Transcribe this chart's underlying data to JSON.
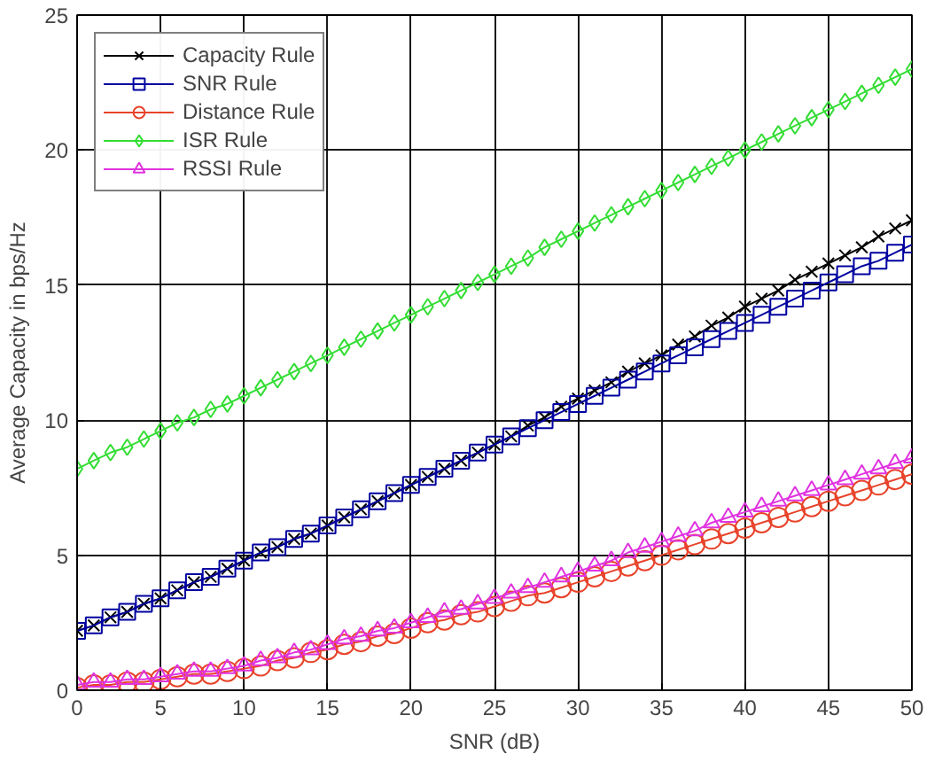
{
  "chart_data": {
    "type": "line",
    "xlabel": "SNR (dB)",
    "ylabel": "Average Capacity in bps/Hz",
    "x": [
      0,
      1,
      2,
      3,
      4,
      5,
      6,
      7,
      8,
      9,
      10,
      11,
      12,
      13,
      14,
      15,
      16,
      17,
      18,
      19,
      20,
      21,
      22,
      23,
      24,
      25,
      26,
      27,
      28,
      29,
      30,
      31,
      32,
      33,
      34,
      35,
      36,
      37,
      38,
      39,
      40,
      41,
      42,
      43,
      44,
      45,
      46,
      47,
      48,
      49,
      50
    ],
    "xlim": [
      0,
      50
    ],
    "xticks": [
      0,
      5,
      10,
      15,
      20,
      25,
      30,
      35,
      40,
      45,
      50
    ],
    "ylim": [
      0,
      25
    ],
    "yticks": [
      0,
      5,
      10,
      15,
      20,
      25
    ],
    "grid": true,
    "legend": "top left",
    "line_style": "solid",
    "series": [
      {
        "name": "Capacity Rule",
        "color": "#000000",
        "marker": "cross",
        "values": [
          2.2,
          2.4,
          2.7,
          2.9,
          3.2,
          3.4,
          3.7,
          4.0,
          4.2,
          4.5,
          4.8,
          5.1,
          5.3,
          5.6,
          5.8,
          6.1,
          6.4,
          6.7,
          7.0,
          7.3,
          7.6,
          7.9,
          8.2,
          8.5,
          8.8,
          9.1,
          9.4,
          9.8,
          10.1,
          10.5,
          10.8,
          11.1,
          11.4,
          11.8,
          12.1,
          12.4,
          12.8,
          13.1,
          13.5,
          13.8,
          14.2,
          14.5,
          14.8,
          15.2,
          15.5,
          15.8,
          16.1,
          16.4,
          16.8,
          17.1,
          17.4
        ]
      },
      {
        "name": "SNR Rule",
        "color": "#0000a0",
        "marker": "square",
        "values": [
          2.2,
          2.4,
          2.7,
          2.9,
          3.2,
          3.4,
          3.7,
          4.0,
          4.2,
          4.5,
          4.8,
          5.1,
          5.3,
          5.6,
          5.8,
          6.1,
          6.4,
          6.7,
          7.0,
          7.3,
          7.6,
          7.9,
          8.2,
          8.5,
          8.8,
          9.1,
          9.4,
          9.7,
          10.0,
          10.3,
          10.6,
          10.9,
          11.2,
          11.5,
          11.8,
          12.1,
          12.4,
          12.7,
          13.0,
          13.3,
          13.6,
          13.9,
          14.2,
          14.5,
          14.8,
          15.1,
          15.4,
          15.7,
          15.9,
          16.2,
          16.5
        ]
      },
      {
        "name": "Distance Rule",
        "color": "#e8432a",
        "marker": "circle",
        "values": [
          0.1,
          0.2,
          0.2,
          0.3,
          0.3,
          0.4,
          0.5,
          0.6,
          0.6,
          0.7,
          0.8,
          0.9,
          1.1,
          1.2,
          1.4,
          1.5,
          1.7,
          1.8,
          2.0,
          2.1,
          2.3,
          2.5,
          2.6,
          2.8,
          2.9,
          3.1,
          3.3,
          3.5,
          3.6,
          3.8,
          4.0,
          4.2,
          4.4,
          4.6,
          4.8,
          5.0,
          5.2,
          5.4,
          5.6,
          5.8,
          6.0,
          6.2,
          6.4,
          6.6,
          6.8,
          7.0,
          7.2,
          7.4,
          7.6,
          7.8,
          8.0
        ]
      },
      {
        "name": "ISR Rule",
        "color": "#33dd33",
        "marker": "diamond",
        "values": [
          8.2,
          8.5,
          8.8,
          9.0,
          9.3,
          9.6,
          9.9,
          10.1,
          10.4,
          10.6,
          10.9,
          11.2,
          11.5,
          11.8,
          12.1,
          12.4,
          12.7,
          13.0,
          13.3,
          13.6,
          13.9,
          14.2,
          14.5,
          14.8,
          15.1,
          15.4,
          15.7,
          16.0,
          16.4,
          16.7,
          17.0,
          17.3,
          17.6,
          17.9,
          18.2,
          18.5,
          18.8,
          19.1,
          19.4,
          19.7,
          20.0,
          20.3,
          20.6,
          20.9,
          21.2,
          21.5,
          21.8,
          22.1,
          22.4,
          22.7,
          23.0
        ]
      },
      {
        "name": "RSSI Rule",
        "color": "#e033e0",
        "marker": "triangle",
        "values": [
          0.2,
          0.3,
          0.3,
          0.4,
          0.4,
          0.5,
          0.6,
          0.7,
          0.7,
          0.8,
          0.9,
          1.1,
          1.2,
          1.4,
          1.5,
          1.7,
          1.9,
          2.0,
          2.2,
          2.3,
          2.5,
          2.7,
          2.9,
          3.0,
          3.2,
          3.4,
          3.6,
          3.8,
          4.0,
          4.2,
          4.4,
          4.6,
          4.8,
          5.1,
          5.3,
          5.5,
          5.7,
          5.9,
          6.2,
          6.4,
          6.6,
          6.8,
          7.0,
          7.2,
          7.4,
          7.6,
          7.8,
          8.0,
          8.2,
          8.4,
          8.6
        ]
      }
    ]
  }
}
